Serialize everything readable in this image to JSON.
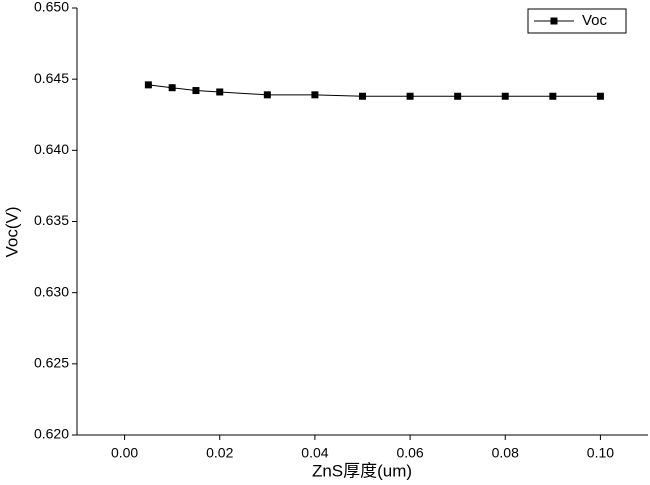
{
  "chart_data": {
    "type": "line",
    "xlabel": "ZnS厚度(um)",
    "ylabel": "Voc(V)",
    "x": [
      0.005,
      0.01,
      0.015,
      0.02,
      0.03,
      0.04,
      0.05,
      0.06,
      0.07,
      0.08,
      0.09,
      0.1
    ],
    "series": [
      {
        "name": "Voc",
        "color": "#000000",
        "values": [
          0.6446,
          0.6444,
          0.6442,
          0.6441,
          0.6439,
          0.6439,
          0.6438,
          0.6438,
          0.6438,
          0.6438,
          0.6438,
          0.6438
        ]
      }
    ],
    "xlim": [
      -0.01,
      0.11
    ],
    "xticks": [
      {
        "value": 0,
        "label": "0.00"
      },
      {
        "value": 0.02,
        "label": "0.02"
      },
      {
        "value": 0.04,
        "label": "0.04"
      },
      {
        "value": 0.06,
        "label": "0.06"
      },
      {
        "value": 0.08,
        "label": "0.08"
      },
      {
        "value": 0.1,
        "label": "0.10"
      }
    ],
    "ylim": [
      0.62,
      0.65
    ],
    "yticks": [
      {
        "value": 0.62,
        "label": "0.620"
      },
      {
        "value": 0.625,
        "label": "0.625"
      },
      {
        "value": 0.63,
        "label": "0.630"
      },
      {
        "value": 0.635,
        "label": "0.635"
      },
      {
        "value": 0.64,
        "label": "0.640"
      },
      {
        "value": 0.645,
        "label": "0.645"
      },
      {
        "value": 0.65,
        "label": "0.650"
      }
    ],
    "legend": "upper right",
    "grid": false
  }
}
